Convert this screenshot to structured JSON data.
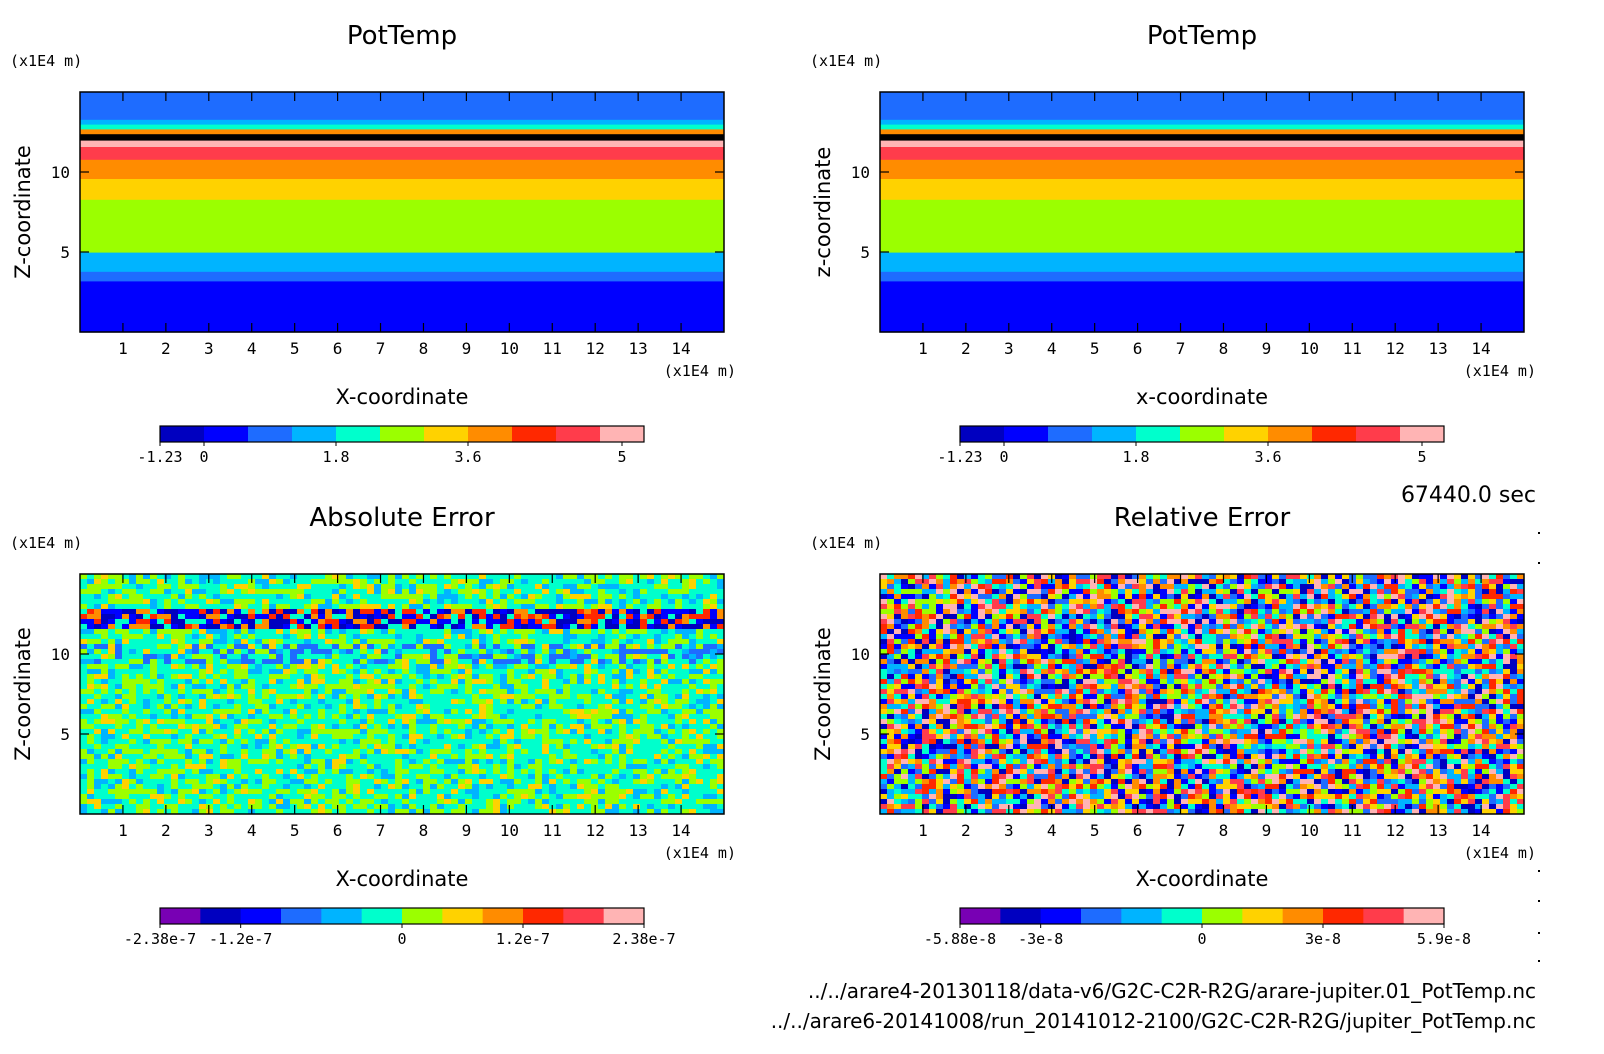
{
  "footer": {
    "time": "67440.0 sec",
    "path1": "../../arare4-20130118/data-v6/G2C-C2R-R2G/arare-jupiter.01_PotTemp.nc",
    "path2": "../../arare6-20141008/run_20141012-2100/G2C-C2R-R2G/jupiter_PotTemp.nc"
  },
  "chart_data": [
    {
      "type": "heatmap",
      "title": "PotTemp",
      "xlabel": "X-coordinate",
      "ylabel": "Z-coordinate",
      "x_unit": "(x1E4 m)",
      "y_unit": "(x1E4 m)",
      "xlim": [
        0,
        15
      ],
      "ylim": [
        0,
        15
      ],
      "x_ticks": [
        1,
        2,
        3,
        4,
        5,
        6,
        7,
        8,
        9,
        10,
        11,
        12,
        13,
        14
      ],
      "y_ticks": [
        5,
        10
      ],
      "pattern": "layered",
      "layers": [
        {
          "z_top": 3.2,
          "level": 1
        },
        {
          "z_top": 3.8,
          "level": 2
        },
        {
          "z_top": 5.0,
          "level": 3
        },
        {
          "z_top": 8.3,
          "level": 5
        },
        {
          "z_top": 9.6,
          "level": 6
        },
        {
          "z_top": 10.8,
          "level": 7
        },
        {
          "z_top": 11.6,
          "level": 9
        },
        {
          "z_top": 12.0,
          "level": 10
        },
        {
          "z_top": 12.4,
          "level": 11
        },
        {
          "z_top": 12.7,
          "level": 7
        },
        {
          "z_top": 13.0,
          "level": 4
        },
        {
          "z_top": 13.3,
          "level": 3
        },
        {
          "z_top": 15.0,
          "level": 2
        }
      ],
      "colorbar": {
        "colors": [
          "#0000c0",
          "#0000ff",
          "#1e6cff",
          "#00b4ff",
          "#00ffcc",
          "#9bff00",
          "#ffd200",
          "#ff8c00",
          "#ff2800",
          "#ff3c4b",
          "#ffb4b4"
        ],
        "labels": [
          "-1.23",
          "0",
          "1.8",
          "3.6",
          "5"
        ],
        "label_pos": [
          0,
          1,
          4,
          7,
          10.5
        ]
      }
    },
    {
      "type": "heatmap",
      "title": "PotTemp",
      "xlabel": "x-coordinate",
      "ylabel": "z-coordinate",
      "x_unit": "(x1E4 m)",
      "y_unit": "(x1E4 m)",
      "xlim": [
        0,
        15
      ],
      "ylim": [
        0,
        15
      ],
      "x_ticks": [
        1,
        2,
        3,
        4,
        5,
        6,
        7,
        8,
        9,
        10,
        11,
        12,
        13,
        14
      ],
      "y_ticks": [
        5,
        10
      ],
      "pattern": "layered",
      "layers": [
        {
          "z_top": 3.2,
          "level": 1
        },
        {
          "z_top": 3.8,
          "level": 2
        },
        {
          "z_top": 5.0,
          "level": 3
        },
        {
          "z_top": 8.3,
          "level": 5
        },
        {
          "z_top": 9.6,
          "level": 6
        },
        {
          "z_top": 10.8,
          "level": 7
        },
        {
          "z_top": 11.6,
          "level": 9
        },
        {
          "z_top": 12.0,
          "level": 10
        },
        {
          "z_top": 12.4,
          "level": 11
        },
        {
          "z_top": 12.7,
          "level": 7
        },
        {
          "z_top": 13.0,
          "level": 4
        },
        {
          "z_top": 13.3,
          "level": 3
        },
        {
          "z_top": 15.0,
          "level": 2
        }
      ],
      "colorbar": {
        "colors": [
          "#0000c0",
          "#0000ff",
          "#1e6cff",
          "#00b4ff",
          "#00ffcc",
          "#9bff00",
          "#ffd200",
          "#ff8c00",
          "#ff2800",
          "#ff3c4b",
          "#ffb4b4"
        ],
        "labels": [
          "-1.23",
          "0",
          "1.8",
          "3.6",
          "5"
        ],
        "label_pos": [
          0,
          1,
          4,
          7,
          10.5
        ]
      }
    },
    {
      "type": "heatmap",
      "title": "Absolute Error",
      "xlabel": "X-coordinate",
      "ylabel": "Z-coordinate",
      "x_unit": "(x1E4 m)",
      "y_unit": "(x1E4 m)",
      "xlim": [
        0,
        15
      ],
      "ylim": [
        0,
        15
      ],
      "x_ticks": [
        1,
        2,
        3,
        4,
        5,
        6,
        7,
        8,
        9,
        10,
        11,
        12,
        13,
        14
      ],
      "y_ticks": [
        5,
        10
      ],
      "pattern": "noise-low",
      "colorbar": {
        "colors": [
          "#7800b4",
          "#0000c0",
          "#0000ff",
          "#1e6cff",
          "#00b4ff",
          "#00ffcc",
          "#9bff00",
          "#ffd200",
          "#ff8c00",
          "#ff2800",
          "#ff3c4b",
          "#ffb4b4"
        ],
        "labels": [
          "-2.38e-7",
          "-1.2e-7",
          "0",
          "1.2e-7",
          "2.38e-7"
        ],
        "label_pos": [
          0,
          2,
          6,
          9,
          12
        ]
      }
    },
    {
      "type": "heatmap",
      "title": "Relative Error",
      "xlabel": "X-coordinate",
      "ylabel": "Z-coordinate",
      "x_unit": "(x1E4 m)",
      "y_unit": "(x1E4 m)",
      "xlim": [
        0,
        15
      ],
      "ylim": [
        0,
        15
      ],
      "x_ticks": [
        1,
        2,
        3,
        4,
        5,
        6,
        7,
        8,
        9,
        10,
        11,
        12,
        13,
        14
      ],
      "y_ticks": [
        5,
        10
      ],
      "pattern": "noise-high",
      "colorbar": {
        "colors": [
          "#7800b4",
          "#0000c0",
          "#0000ff",
          "#1e6cff",
          "#00b4ff",
          "#00ffcc",
          "#9bff00",
          "#ffd200",
          "#ff8c00",
          "#ff2800",
          "#ff3c4b",
          "#ffb4b4"
        ],
        "labels": [
          "-5.88e-8",
          "-3e-8",
          "0",
          "3e-8",
          "5.9e-8"
        ],
        "label_pos": [
          0,
          2,
          6,
          9,
          12
        ]
      }
    }
  ]
}
